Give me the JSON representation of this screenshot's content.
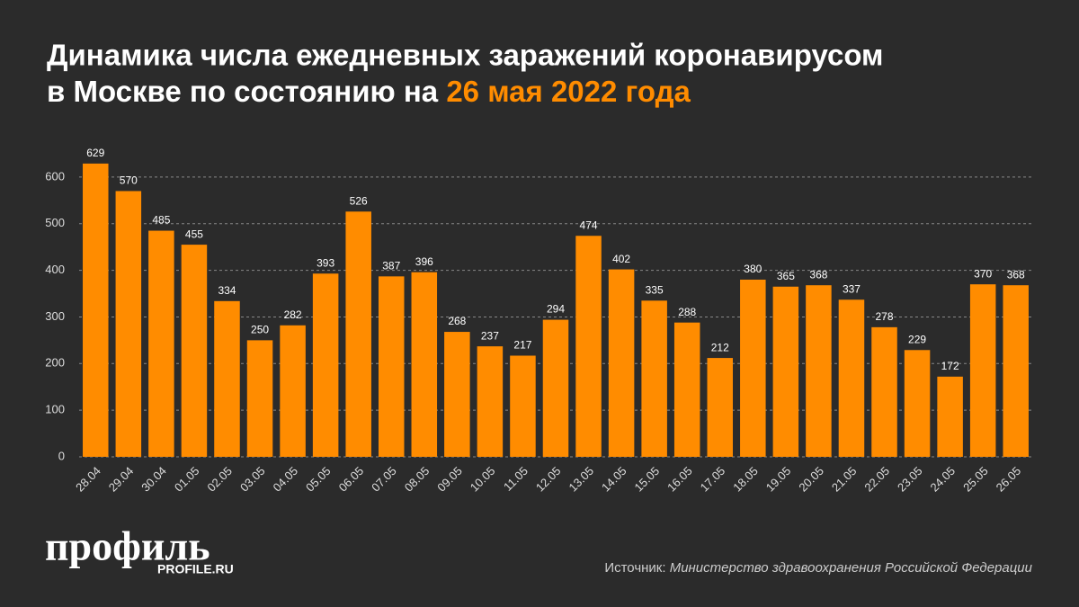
{
  "chart_data": {
    "type": "bar",
    "title_line1": "Динамика числа ежедневных заражений коронавирусом",
    "title_line2": "в Москве по состоянию на",
    "title_date": "26 мая 2022 года",
    "categories": [
      "28.04",
      "29.04",
      "30.04",
      "01.05",
      "02.05",
      "03.05",
      "04.05",
      "05.05",
      "06.05",
      "07.05",
      "08.05",
      "09.05",
      "10.05",
      "11.05",
      "12.05",
      "13.05",
      "14.05",
      "15.05",
      "16.05",
      "17.05",
      "18.05",
      "19.05",
      "20.05",
      "21.05",
      "22.05",
      "23.05",
      "24.05",
      "25.05",
      "26.05"
    ],
    "values": [
      629,
      570,
      485,
      455,
      334,
      250,
      282,
      393,
      526,
      387,
      396,
      268,
      237,
      217,
      294,
      474,
      402,
      335,
      288,
      212,
      380,
      365,
      368,
      337,
      278,
      229,
      172,
      370,
      368
    ],
    "color": "#ff8c00",
    "ylim": [
      0,
      650
    ],
    "yticks": [
      0,
      100,
      200,
      300,
      400,
      500,
      600
    ],
    "grid": true,
    "logo": "профиль",
    "logo_url": "PROFILE.RU",
    "source_label": "Источник:",
    "source": "Министерство здравоохранения Российской Федерации"
  }
}
